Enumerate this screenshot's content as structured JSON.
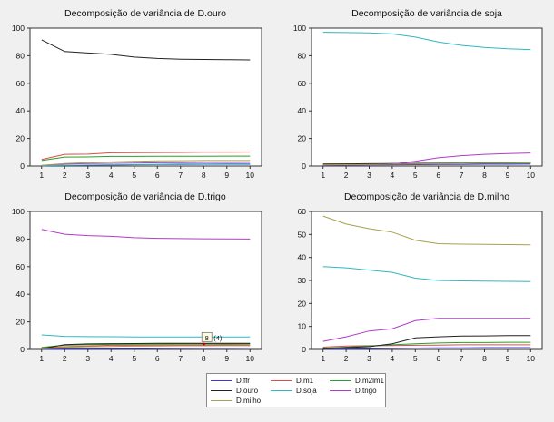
{
  "chart_data": [
    {
      "type": "line",
      "title": "Decomposição de variância de D.ouro",
      "x": [
        1,
        2,
        3,
        4,
        5,
        6,
        7,
        8,
        9,
        10
      ],
      "ylim": [
        0,
        100
      ],
      "yticks": [
        0,
        20,
        40,
        60,
        80,
        100
      ],
      "series": [
        {
          "name": "D.ffr",
          "values": [
            0.3,
            0.5,
            0.6,
            0.8,
            1.0,
            1.2,
            1.3,
            1.4,
            1.5,
            1.5
          ]
        },
        {
          "name": "D.m1",
          "values": [
            4.8,
            8.5,
            8.6,
            9.6,
            9.7,
            9.8,
            9.9,
            10.0,
            10.0,
            10.1
          ]
        },
        {
          "name": "D.m2lm1",
          "values": [
            4.0,
            6.5,
            6.6,
            7.0,
            7.0,
            7.1,
            7.1,
            7.1,
            7.2,
            7.2
          ]
        },
        {
          "name": "D.ouro",
          "values": [
            91.5,
            83.0,
            82.0,
            81.0,
            79.0,
            78.0,
            77.5,
            77.3,
            77.2,
            77.0
          ]
        },
        {
          "name": "D.soja",
          "values": [
            0.2,
            0.5,
            0.7,
            0.8,
            0.9,
            1.0,
            1.0,
            1.1,
            1.1,
            1.1
          ]
        },
        {
          "name": "D.trigo",
          "values": [
            0.5,
            1.5,
            1.8,
            2.0,
            2.2,
            2.4,
            2.5,
            2.6,
            2.6,
            2.7
          ]
        },
        {
          "name": "D.milho",
          "values": [
            0.5,
            1.8,
            2.5,
            3.0,
            3.5,
            3.8,
            3.9,
            4.0,
            4.0,
            4.0
          ]
        }
      ]
    },
    {
      "type": "line",
      "title": "Decomposição de variância de soja",
      "x": [
        1,
        2,
        3,
        4,
        5,
        6,
        7,
        8,
        9,
        10
      ],
      "ylim": [
        0,
        100
      ],
      "yticks": [
        0,
        20,
        40,
        60,
        80,
        100
      ],
      "series": [
        {
          "name": "D.ffr",
          "values": [
            0.5,
            0.7,
            0.8,
            0.9,
            1.0,
            1.1,
            1.2,
            1.3,
            1.3,
            1.4
          ]
        },
        {
          "name": "D.m1",
          "values": [
            0.8,
            1.0,
            1.2,
            1.3,
            1.5,
            1.7,
            2.0,
            2.2,
            2.4,
            2.5
          ]
        },
        {
          "name": "D.m2lm1",
          "values": [
            1.0,
            1.2,
            1.5,
            1.7,
            2.0,
            2.2,
            2.4,
            2.5,
            2.6,
            2.7
          ]
        },
        {
          "name": "D.ouro",
          "values": [
            1.5,
            1.6,
            1.7,
            1.8,
            1.9,
            2.0,
            2.0,
            2.1,
            2.1,
            2.1
          ]
        },
        {
          "name": "D.soja",
          "values": [
            97.0,
            96.8,
            96.5,
            95.8,
            93.5,
            90.0,
            87.5,
            86.0,
            85.0,
            84.5
          ]
        },
        {
          "name": "D.trigo",
          "values": [
            0.5,
            0.8,
            1.0,
            1.5,
            3.5,
            6.0,
            7.5,
            8.5,
            9.0,
            9.5
          ]
        },
        {
          "name": "D.milho",
          "values": [
            0.8,
            1.0,
            1.2,
            1.4,
            1.6,
            1.8,
            2.0,
            2.1,
            2.2,
            2.3
          ]
        }
      ]
    },
    {
      "type": "line",
      "title": "Decomposição de variância de D.trigo",
      "x": [
        1,
        2,
        3,
        4,
        5,
        6,
        7,
        8,
        9,
        10
      ],
      "ylim": [
        0,
        100
      ],
      "yticks": [
        0,
        20,
        40,
        60,
        80,
        100
      ],
      "annotations": [
        {
          "x": 8,
          "text": "8",
          "extra": "(4)"
        }
      ],
      "series": [
        {
          "name": "D.ffr",
          "values": [
            0.2,
            0.3,
            0.4,
            0.5,
            0.6,
            0.7,
            0.8,
            0.9,
            0.9,
            1.0
          ]
        },
        {
          "name": "D.m1",
          "values": [
            1.0,
            2.0,
            2.5,
            3.0,
            3.0,
            3.1,
            3.2,
            3.2,
            3.3,
            3.3
          ]
        },
        {
          "name": "D.m2lm1",
          "values": [
            1.5,
            3.0,
            3.5,
            3.7,
            3.8,
            3.9,
            4.0,
            4.0,
            4.0,
            4.1
          ]
        },
        {
          "name": "D.ouro",
          "values": [
            0.5,
            3.5,
            4.0,
            4.2,
            4.3,
            4.4,
            4.5,
            4.5,
            4.5,
            4.5
          ]
        },
        {
          "name": "D.soja",
          "values": [
            10.5,
            9.5,
            9.3,
            9.2,
            9.1,
            9.0,
            9.0,
            9.0,
            9.0,
            9.0
          ]
        },
        {
          "name": "D.trigo",
          "values": [
            87.0,
            83.5,
            82.5,
            82.0,
            81.0,
            80.5,
            80.3,
            80.2,
            80.1,
            80.0
          ]
        },
        {
          "name": "D.milho",
          "values": [
            0.5,
            1.5,
            2.0,
            2.2,
            2.4,
            2.5,
            2.6,
            2.6,
            2.7,
            2.7
          ]
        }
      ]
    },
    {
      "type": "line",
      "title": "Decomposição de variância de D.milho",
      "x": [
        1,
        2,
        3,
        4,
        5,
        6,
        7,
        8,
        9,
        10
      ],
      "ylim": [
        0,
        60
      ],
      "yticks": [
        0,
        10,
        20,
        30,
        40,
        50,
        60
      ],
      "series": [
        {
          "name": "D.ffr",
          "values": [
            0.2,
            0.3,
            0.4,
            0.5,
            0.6,
            0.7,
            0.7,
            0.8,
            0.8,
            0.8
          ]
        },
        {
          "name": "D.m1",
          "values": [
            1.0,
            1.5,
            1.6,
            1.7,
            1.8,
            1.9,
            2.0,
            2.0,
            2.0,
            2.0
          ]
        },
        {
          "name": "D.m2lm1",
          "values": [
            0.5,
            1.0,
            1.5,
            2.0,
            2.5,
            2.8,
            3.0,
            3.0,
            3.1,
            3.1
          ]
        },
        {
          "name": "D.ouro",
          "values": [
            0.3,
            0.8,
            1.2,
            2.5,
            5.0,
            5.5,
            5.8,
            5.9,
            6.0,
            6.0
          ]
        },
        {
          "name": "D.soja",
          "values": [
            36.0,
            35.5,
            34.5,
            33.5,
            31.0,
            30.0,
            29.8,
            29.7,
            29.6,
            29.5
          ]
        },
        {
          "name": "D.trigo",
          "values": [
            3.5,
            5.5,
            8.0,
            9.0,
            12.5,
            13.5,
            13.5,
            13.5,
            13.5,
            13.5
          ]
        },
        {
          "name": "D.milho",
          "values": [
            58.0,
            54.5,
            52.5,
            51.0,
            47.5,
            46.0,
            45.8,
            45.7,
            45.6,
            45.5
          ]
        }
      ]
    }
  ],
  "legend": {
    "entries": [
      {
        "name": "D.ffr",
        "color": "#3a3ad0"
      },
      {
        "name": "D.m1",
        "color": "#e04a4a"
      },
      {
        "name": "D.m2lm1",
        "color": "#28a028"
      },
      {
        "name": "D.ouro",
        "color": "#222222"
      },
      {
        "name": "D.soja",
        "color": "#2fb8c0"
      },
      {
        "name": "D.trigo",
        "color": "#b03cc8"
      },
      {
        "name": "D.milho",
        "color": "#a8a050"
      }
    ]
  }
}
